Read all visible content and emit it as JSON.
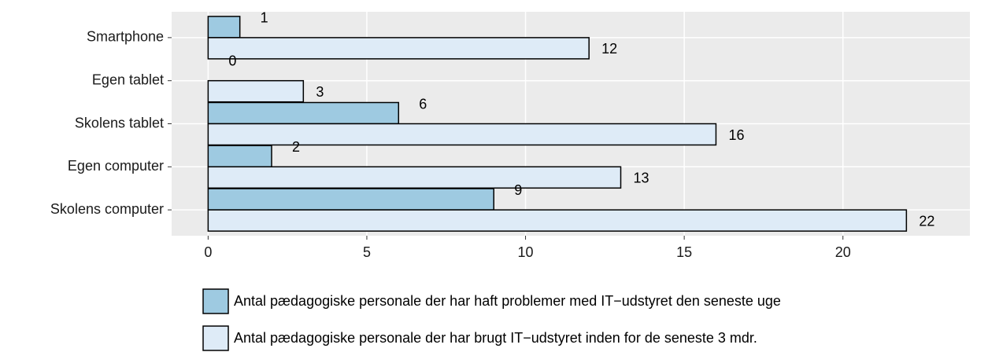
{
  "chart_data": {
    "type": "bar",
    "orientation": "horizontal",
    "categories": [
      "Smartphone",
      "Egen tablet",
      "Skolens tablet",
      "Egen computer",
      "Skolens computer"
    ],
    "series": [
      {
        "name": "Antal pædagogiske personale der har haft problemer med IT−udstyret den seneste uge",
        "color": "#9ecae1",
        "values": [
          1,
          0,
          6,
          2,
          9
        ]
      },
      {
        "name": "Antal pædagogiske personale der har brugt IT−udstyret inden for de seneste 3 mdr.",
        "color": "#deebf7",
        "values": [
          12,
          3,
          16,
          13,
          22
        ]
      }
    ],
    "xlim": [
      -1.15,
      24
    ],
    "xticks": [
      0,
      5,
      10,
      15,
      20
    ],
    "grid": true,
    "legend": "bottom"
  }
}
